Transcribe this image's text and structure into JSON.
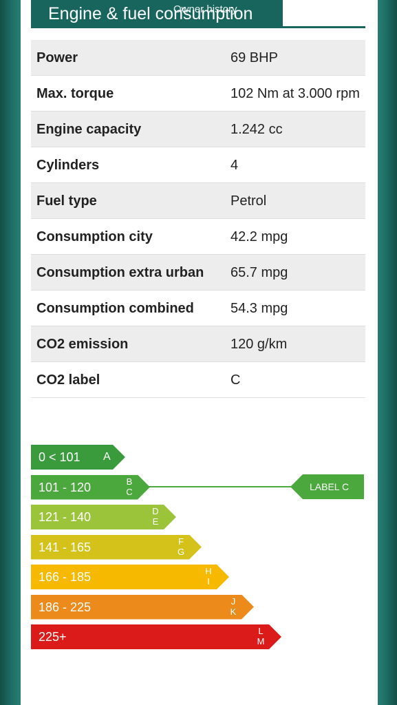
{
  "header": {
    "title": "Engine & fuel consumption",
    "overlay_text": "Owner history"
  },
  "specs": [
    {
      "label": "Power",
      "value": "69 BHP"
    },
    {
      "label": "Max. torque",
      "value": "102 Nm at 3.000 rpm"
    },
    {
      "label": "Engine capacity",
      "value": "1.242 cc"
    },
    {
      "label": "Cylinders",
      "value": "4"
    },
    {
      "label": "Fuel type",
      "value": "Petrol"
    },
    {
      "label": "Consumption city",
      "value": "42.2 mpg"
    },
    {
      "label": "Consumption extra urban",
      "value": "65.7 mpg"
    },
    {
      "label": "Consumption combined",
      "value": "54.3 mpg"
    },
    {
      "label": "CO2 emission",
      "value": "120 g/km"
    },
    {
      "label": "CO2 label",
      "value": "C"
    }
  ],
  "energy_label": {
    "bands": [
      {
        "range": "0 < 101",
        "letters": "A",
        "color": "#3a9b3c"
      },
      {
        "range": "101 - 120",
        "letters": "B C",
        "color": "#4aa83c"
      },
      {
        "range": "121 - 140",
        "letters": "D E",
        "color": "#9bc43a"
      },
      {
        "range": "141 - 165",
        "letters": "F G",
        "color": "#d4c21b"
      },
      {
        "range": "166 - 185",
        "letters": "H I",
        "color": "#f6b900"
      },
      {
        "range": "186 - 225",
        "letters": "J K",
        "color": "#ec8a1c"
      },
      {
        "range": "225+",
        "letters": "L M",
        "color": "#db1a1a"
      }
    ],
    "selected_band": 1,
    "badge_text": "LABEL C"
  }
}
